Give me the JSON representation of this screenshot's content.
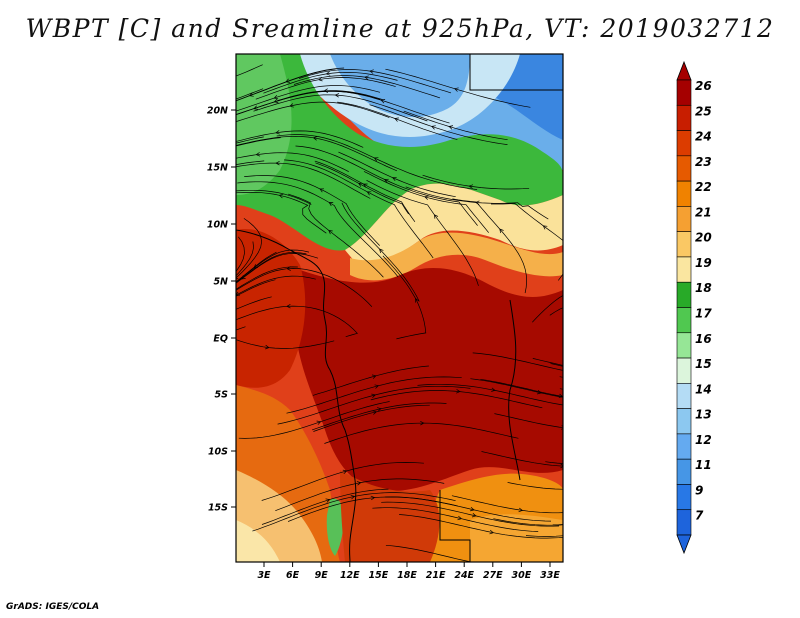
{
  "title": "WBPT [C] and Sreamline at 925hPa, VT: 2019032712",
  "credit": "GrADS: IGES/COLA",
  "map": {
    "variable": "WBPT",
    "units": "C",
    "level": "925hPa",
    "valid_time": "2019032712",
    "lat_labels": [
      "20N",
      "15N",
      "10N",
      "5N",
      "EQ",
      "5S",
      "10S",
      "15S"
    ],
    "lon_labels": [
      "3E",
      "6E",
      "9E",
      "12E",
      "15E",
      "18E",
      "21E",
      "24E",
      "27E",
      "30E",
      "33E"
    ]
  },
  "colorbar": {
    "labels": [
      "26",
      "25",
      "24",
      "23",
      "22",
      "21",
      "20",
      "19",
      "18",
      "17",
      "16",
      "15",
      "14",
      "13",
      "12",
      "11",
      "9",
      "7"
    ],
    "colors": [
      "#a50000",
      "#c81e00",
      "#dc3c00",
      "#e65a00",
      "#f08200",
      "#f5a032",
      "#fac864",
      "#fae6a0",
      "#28aa28",
      "#50c850",
      "#96e696",
      "#dcf5dc",
      "#b4dcf5",
      "#8cc8f0",
      "#64aaf0",
      "#4696e6",
      "#2878e6",
      "#1e64dc"
    ]
  }
}
